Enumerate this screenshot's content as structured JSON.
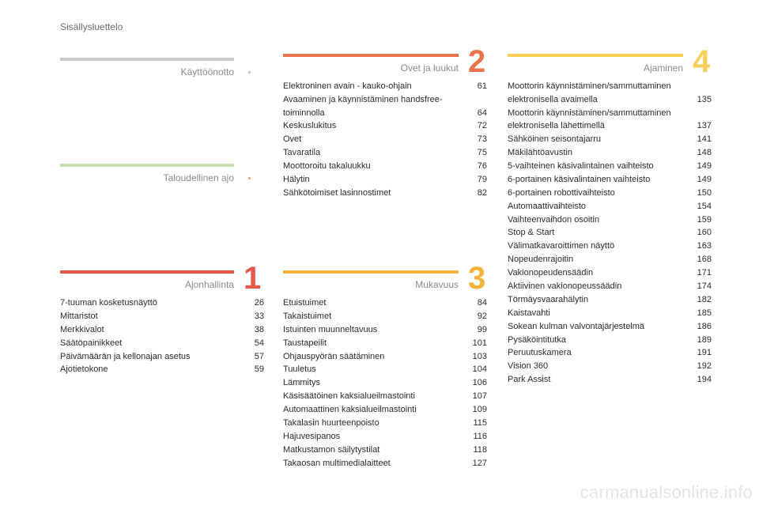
{
  "page_header": "Sisällysluettelo",
  "colors": {
    "kayttoonotto": "#c8c8c8",
    "taloudellinen": "#c5dfb2",
    "ajonhallinta": "#e8584a",
    "ovet": "#ea7348",
    "mukavuus": "#f3b23a",
    "ajaminen": "#f9cf5a"
  },
  "sections": {
    "kayttoonotto": {
      "title": "Käyttöönotto",
      "entries": []
    },
    "taloudellinen": {
      "title": "Taloudellinen ajo",
      "entries": []
    },
    "ajonhallinta": {
      "title": "Ajonhallinta",
      "number": "1",
      "entries": [
        {
          "label": "7-tuuman kosketusnäyttö",
          "page": "26"
        },
        {
          "label": "Mittaristot",
          "page": "33"
        },
        {
          "label": "Merkkivalot",
          "page": "38"
        },
        {
          "label": "Säätöpainikkeet",
          "page": "54"
        },
        {
          "label": "Päivämäärän ja kellonajan asetus",
          "page": "57"
        },
        {
          "label": "Ajotietokone",
          "page": "59"
        }
      ]
    },
    "ovet": {
      "title": "Ovet ja luukut",
      "number": "2",
      "entries": [
        {
          "label": "Elektroninen avain - kauko-ohjain",
          "page": "61"
        },
        {
          "label": "Avaaminen ja käynnistäminen handsfree-toiminnolla",
          "page": "64"
        },
        {
          "label": "Keskuslukitus",
          "page": "72"
        },
        {
          "label": "Ovet",
          "page": "73"
        },
        {
          "label": "Tavaratila",
          "page": "75"
        },
        {
          "label": "Moottoroitu takaluukku",
          "page": "76"
        },
        {
          "label": "Hälytin",
          "page": "79"
        },
        {
          "label": "Sähkötoimiset lasinnostimet",
          "page": "82"
        }
      ]
    },
    "mukavuus": {
      "title": "Mukavuus",
      "number": "3",
      "entries": [
        {
          "label": "Etuistuimet",
          "page": "84"
        },
        {
          "label": "Takaistuimet",
          "page": "92"
        },
        {
          "label": "Istuinten muunneltavuus",
          "page": "99"
        },
        {
          "label": "Taustapeilit",
          "page": "101"
        },
        {
          "label": "Ohjauspyörän säätäminen",
          "page": "103"
        },
        {
          "label": "Tuuletus",
          "page": "104"
        },
        {
          "label": "Lämmitys",
          "page": "106"
        },
        {
          "label": "Käsisäätöinen kaksialueilmastointi",
          "page": "107"
        },
        {
          "label": "Automaattinen kaksialueilmastointi",
          "page": "109"
        },
        {
          "label": "Takalasin huurteenpoisto",
          "page": "115"
        },
        {
          "label": "Hajuvesipanos",
          "page": "116"
        },
        {
          "label": "Matkustamon säilytystilat",
          "page": "118"
        },
        {
          "label": "Takaosan multimedialaitteet",
          "page": "127"
        }
      ]
    },
    "ajaminen": {
      "title": "Ajaminen",
      "number": "4",
      "entries": [
        {
          "label": "Moottorin käynnistäminen/sammuttaminen elektronisella avaimella",
          "page": "135"
        },
        {
          "label": "Moottorin käynnistäminen/sammuttaminen elektronisella lähettimellä",
          "page": "137"
        },
        {
          "label": "Sähköinen seisontajarru",
          "page": "141"
        },
        {
          "label": "Mäkilähtöavustin",
          "page": "148"
        },
        {
          "label": "5-vaihteinen käsivalintainen vaihteisto",
          "page": "149"
        },
        {
          "label": "6-portainen käsivalintainen vaihteisto",
          "page": "149"
        },
        {
          "label": "6-portainen robottivaihteisto",
          "page": "150"
        },
        {
          "label": "Automaattivaihteisto",
          "page": "154"
        },
        {
          "label": "Vaihteenvaihdon osoitin",
          "page": "159"
        },
        {
          "label": "Stop & Start",
          "page": "160"
        },
        {
          "label": "Välimatkavaroittimen näyttö",
          "page": "163"
        },
        {
          "label": "Nopeudenrajoitin",
          "page": "168"
        },
        {
          "label": "Vakionopeudensäädin",
          "page": "171"
        },
        {
          "label": "Aktiivinen vakionopeussäädin",
          "page": "174"
        },
        {
          "label": "Törmäysvaarahälytin",
          "page": "182"
        },
        {
          "label": "Kaistavahti",
          "page": "185"
        },
        {
          "label": "Sokean kulman valvontajärjestelmä",
          "page": "186"
        },
        {
          "label": "Pysäköintitutka",
          "page": "189"
        },
        {
          "label": "Peruutuskamera",
          "page": "191"
        },
        {
          "label": "Vision 360",
          "page": "192"
        },
        {
          "label": "Park Assist",
          "page": "194"
        }
      ]
    }
  },
  "watermark": "carmanualsonline.info"
}
